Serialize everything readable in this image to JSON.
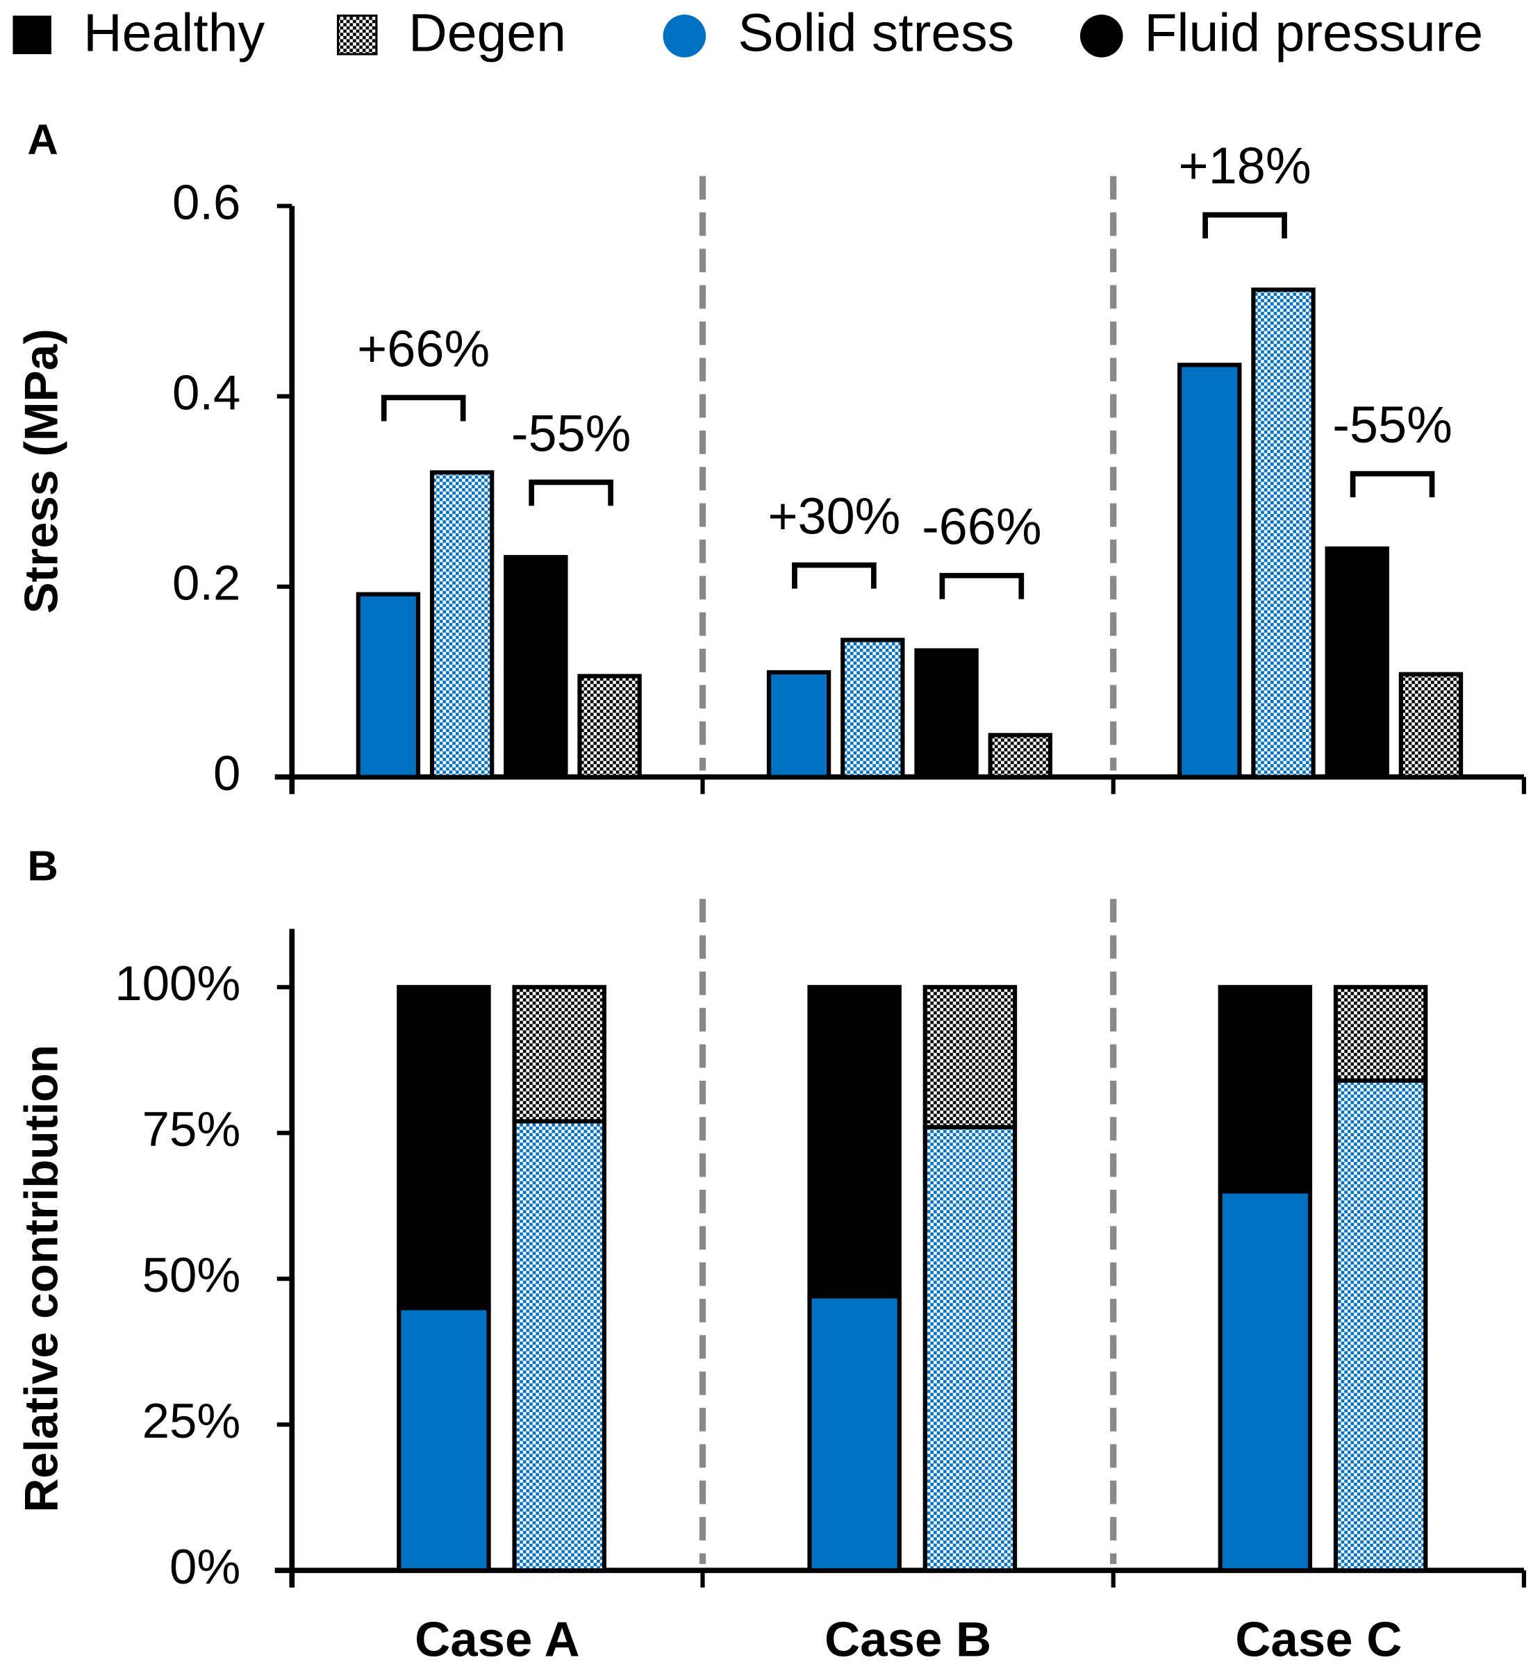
{
  "legend": {
    "conditions": [
      "Healthy",
      "Degen"
    ],
    "components": [
      {
        "name": "Solid stress",
        "color": "#0070c0"
      },
      {
        "name": "Fluid pressure",
        "color": "#000000"
      }
    ]
  },
  "chart_data": [
    {
      "type": "bar",
      "panel": "A",
      "ylabel": "Stress (MPa)",
      "ylim": [
        0,
        0.6
      ],
      "yticks": [
        0,
        0.2,
        0.4,
        0.6
      ],
      "series": [
        {
          "healthy": [
            0.192,
            0.11,
            0.433
          ],
          "degen": [
            0.32,
            0.144,
            0.512
          ]
        },
        {
          "healthy": [
            0.231,
            0.133,
            0.24
          ],
          "degen": [
            0.106,
            0.044,
            0.108
          ]
        }
      ],
      "annotations": [
        "+66%",
        "-55%",
        "+30%",
        "-66%",
        "+18%",
        "-55%"
      ]
    },
    {
      "type": "stacked_bar",
      "panel": "B",
      "ylabel": "Relative contribution",
      "categories": [
        "Case A",
        "Case B",
        "Case C"
      ],
      "ylim": [
        0,
        110
      ],
      "yticks": [
        {
          "value": 0,
          "label": "0%"
        },
        {
          "value": 25,
          "label": "25%"
        },
        {
          "value": 50,
          "label": "50%"
        },
        {
          "value": 75,
          "label": "75%"
        },
        {
          "value": 100,
          "label": "100%"
        }
      ],
      "series": [
        {
          "healthy": [
            45,
            47,
            65
          ],
          "degen": [
            77,
            76,
            84
          ]
        },
        {
          "healthy": [
            55,
            53,
            35
          ],
          "degen": [
            23,
            24,
            16
          ]
        }
      ]
    }
  ]
}
